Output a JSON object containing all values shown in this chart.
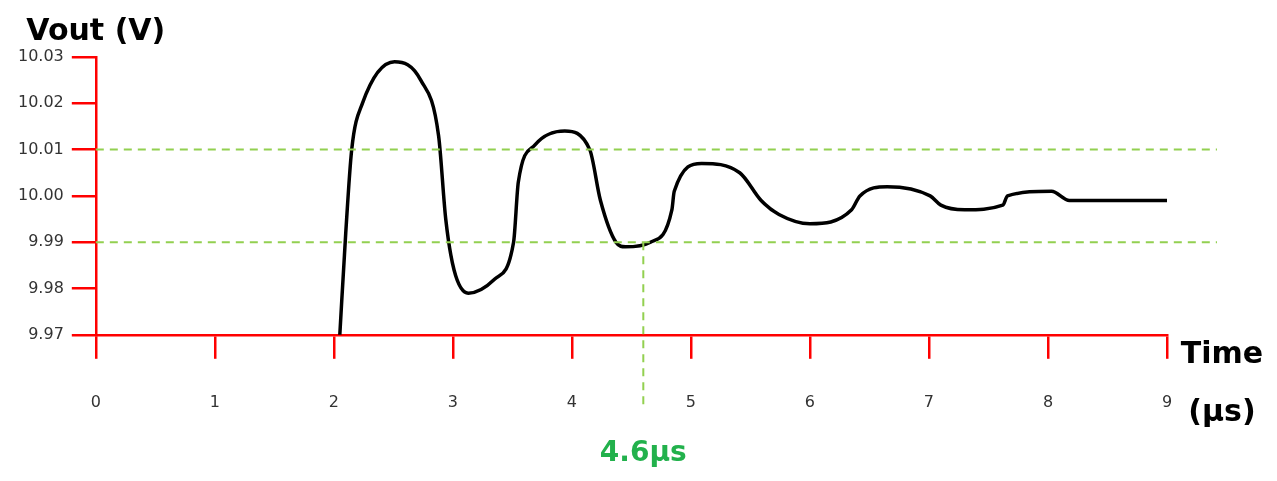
{
  "chart_data": {
    "type": "line",
    "ylabel": "Vout (V)",
    "xlabel": "Time (µs)",
    "x": [
      2.05,
      2.1,
      2.15,
      2.24,
      2.51,
      2.73,
      2.88,
      2.94,
      3.01,
      3.13,
      3.35,
      3.51,
      3.55,
      3.69,
      3.94,
      4.15,
      4.24,
      4.37,
      4.45,
      4.66,
      4.84,
      4.86,
      5.09,
      5.41,
      5.59,
      5.74,
      6.0,
      6.35,
      6.42,
      6.65,
      7.01,
      7.1,
      7.3,
      7.62,
      7.66,
      8.03,
      8.18,
      8.41,
      9.0
    ],
    "series": [
      {
        "color": "#000000",
        "values": [
          9.97,
          9.992,
          10.01,
          10.02,
          10.029,
          10.025,
          10.013,
          9.995,
          9.984,
          9.979,
          9.982,
          9.99,
          10.003,
          10.011,
          10.014,
          10.01,
          9.999,
          9.99,
          9.989,
          9.99,
          9.997,
          10.001,
          10.007,
          10.005,
          9.999,
          9.996,
          9.994,
          9.997,
          10.0,
          10.002,
          10.0,
          9.998,
          9.997,
          9.998,
          10.0,
          10.001,
          9.999,
          9.999,
          9.999
        ]
      }
    ],
    "xlim": [
      0,
      9
    ],
    "xticks": [
      0,
      1,
      2,
      3,
      4,
      5,
      6,
      7,
      8,
      9
    ],
    "ylim": [
      9.97,
      10.03
    ],
    "yticks": [
      9.97,
      9.98,
      9.99,
      {
        "value": 10,
        "label": "10.00"
      },
      10.01,
      10.02,
      10.03
    ],
    "ref_lines": [
      {
        "axis": "y",
        "value": 10.01,
        "color": "#92d050",
        "line_style": "dashed"
      },
      {
        "axis": "y",
        "value": 9.99,
        "color": "#92d050",
        "line_style": "dashed"
      },
      {
        "axis": "x",
        "value": 4.6,
        "label": "4.6µs",
        "color": "#92d050",
        "line_style": "dashed"
      }
    ],
    "marker": "none",
    "line_style": "solid"
  }
}
